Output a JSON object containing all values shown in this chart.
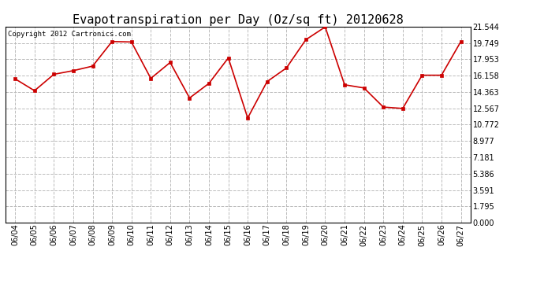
{
  "title": "Evapotranspiration per Day (Oz/sq ft) 20120628",
  "copyright": "Copyright 2012 Cartronics.com",
  "dates": [
    "06/04",
    "06/05",
    "06/06",
    "06/07",
    "06/08",
    "06/09",
    "06/10",
    "06/11",
    "06/12",
    "06/13",
    "06/14",
    "06/15",
    "06/16",
    "06/17",
    "06/18",
    "06/19",
    "06/20",
    "06/21",
    "06/22",
    "06/23",
    "06/24",
    "06/25",
    "06/26",
    "06/27"
  ],
  "values": [
    15.8,
    14.5,
    16.3,
    16.7,
    17.2,
    19.9,
    19.85,
    15.85,
    17.6,
    13.7,
    15.3,
    18.1,
    11.5,
    15.5,
    17.0,
    20.1,
    21.5,
    15.15,
    14.8,
    12.7,
    12.55,
    16.2,
    16.2,
    19.9
  ],
  "yticks": [
    0.0,
    1.795,
    3.591,
    5.386,
    7.181,
    8.977,
    10.772,
    12.567,
    14.363,
    16.158,
    17.953,
    19.749,
    21.544
  ],
  "line_color": "#cc0000",
  "marker_color": "#cc0000",
  "bg_color": "#ffffff",
  "plot_bg_color": "#ffffff",
  "grid_color": "#bbbbbb",
  "title_fontsize": 11,
  "copyright_fontsize": 6.5,
  "tick_fontsize": 7,
  "ylim": [
    0.0,
    21.544
  ],
  "marker": "s",
  "marker_size": 2.5
}
